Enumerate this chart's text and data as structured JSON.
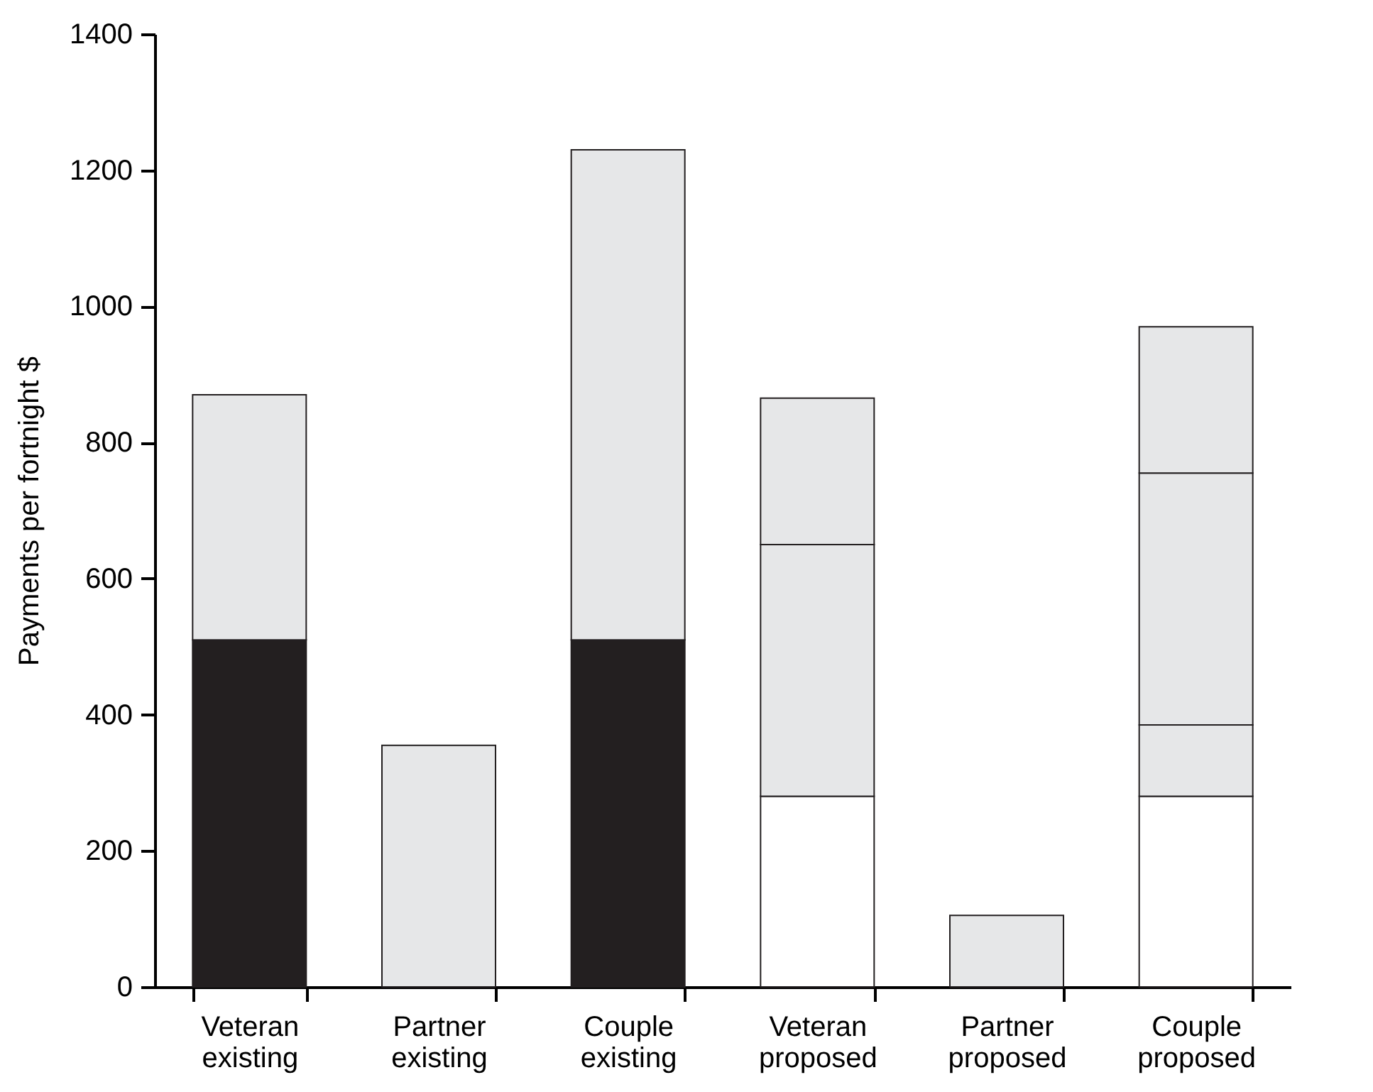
{
  "chart_data": {
    "type": "bar",
    "ylabel": "Payments per fortnight $",
    "categories": [
      "Veteran existing",
      "Partner existing",
      "Couple existing",
      "Veteran proposed",
      "Partner proposed",
      "Couple proposed"
    ],
    "stacked": true,
    "ylim": [
      0,
      1400
    ],
    "yticks": [
      0,
      200,
      400,
      600,
      800,
      1000,
      1200,
      1400
    ],
    "grid": false,
    "legend": false,
    "series": [
      {
        "color": "#231f20",
        "values": [
          510,
          null,
          510,
          null,
          null,
          null
        ]
      },
      {
        "color": "#ffffff",
        "values": [
          null,
          null,
          null,
          280,
          null,
          280
        ]
      },
      {
        "color": "#e6e7e8",
        "values": [
          null,
          null,
          null,
          null,
          105,
          105
        ]
      },
      {
        "color": "#e6e7e8",
        "values": [
          360,
          355,
          720,
          null,
          null,
          null
        ]
      },
      {
        "color": "#e6e7e8",
        "values": [
          null,
          null,
          null,
          370,
          null,
          370
        ]
      },
      {
        "color": "#e6e7e8",
        "values": [
          null,
          null,
          null,
          215,
          null,
          215
        ]
      }
    ]
  }
}
